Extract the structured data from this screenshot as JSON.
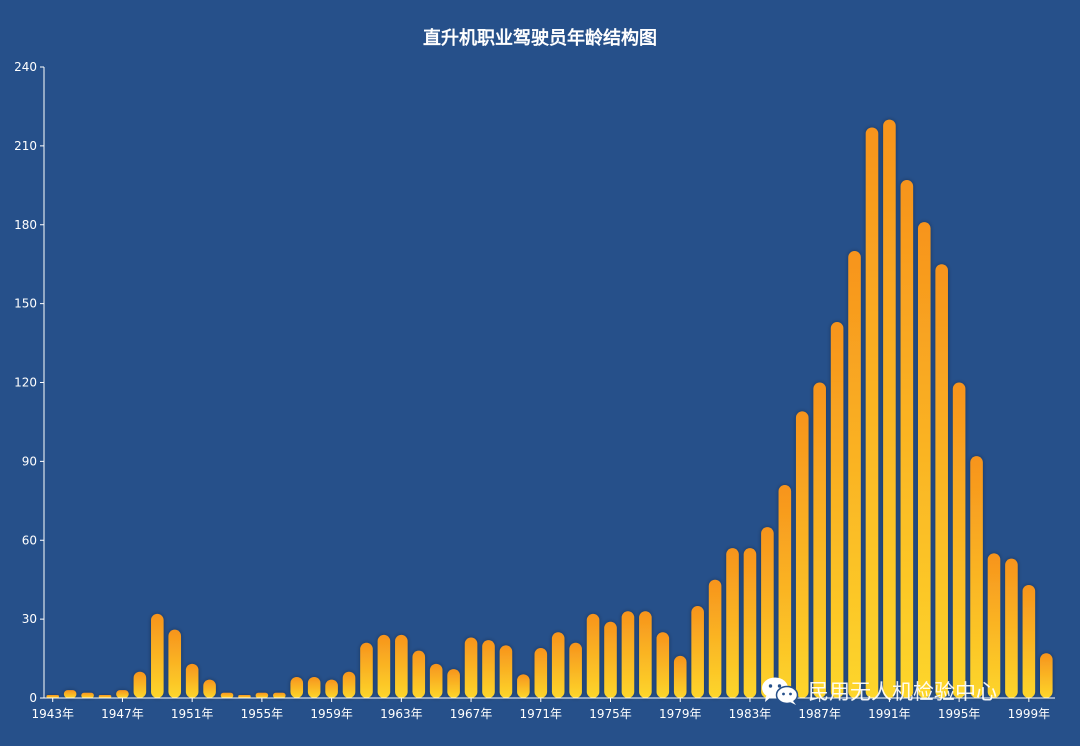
{
  "chart_data": {
    "type": "bar",
    "title": "直升机职业驾驶员年龄结构图",
    "xlabel": "",
    "ylabel": "",
    "ylim": [
      0,
      240
    ],
    "yticks": [
      0,
      30,
      60,
      90,
      120,
      150,
      180,
      210,
      240
    ],
    "categories": [
      "1943年",
      "1944年",
      "1945年",
      "1946年",
      "1947年",
      "1948年",
      "1949年",
      "1950年",
      "1951年",
      "1952年",
      "1953年",
      "1954年",
      "1955年",
      "1956年",
      "1957年",
      "1958年",
      "1959年",
      "1960年",
      "1961年",
      "1962年",
      "1963年",
      "1964年",
      "1965年",
      "1966年",
      "1967年",
      "1968年",
      "1969年",
      "1970年",
      "1971年",
      "1972年",
      "1973年",
      "1974年",
      "1975年",
      "1976年",
      "1977年",
      "1978年",
      "1979年",
      "1980年",
      "1981年",
      "1982年",
      "1983年",
      "1984年",
      "1985年",
      "1986年",
      "1987年",
      "1988年",
      "1989年",
      "1990年",
      "1991年",
      "1992年",
      "1993年",
      "1994年",
      "1995年",
      "1996年",
      "1997年",
      "1998年",
      "1999年",
      "2000年"
    ],
    "values": [
      1,
      3,
      2,
      1,
      3,
      10,
      32,
      26,
      13,
      7,
      2,
      1,
      2,
      2,
      8,
      8,
      7,
      10,
      21,
      24,
      24,
      18,
      13,
      11,
      23,
      22,
      20,
      9,
      19,
      25,
      21,
      32,
      29,
      33,
      33,
      25,
      16,
      35,
      45,
      57,
      57,
      65,
      81,
      109,
      120,
      143,
      170,
      217,
      220,
      197,
      181,
      165,
      120,
      92,
      55,
      53,
      43,
      17
    ],
    "visible_tick_labels": [
      "1943年",
      "1947年",
      "1951年",
      "1955年",
      "1959年",
      "1963年",
      "1967年",
      "1971年",
      "1975年",
      "1979年",
      "1983年",
      "1987年",
      "1991年",
      "1995年",
      "1999年"
    ],
    "colors": {
      "bar_top": "#f7941d",
      "bar_bottom": "#fdd62b",
      "background": "#26508a"
    },
    "grid": false,
    "legend": "none"
  },
  "watermark": {
    "text": "民用无人机检验中心",
    "icon": "wechat-icon"
  }
}
